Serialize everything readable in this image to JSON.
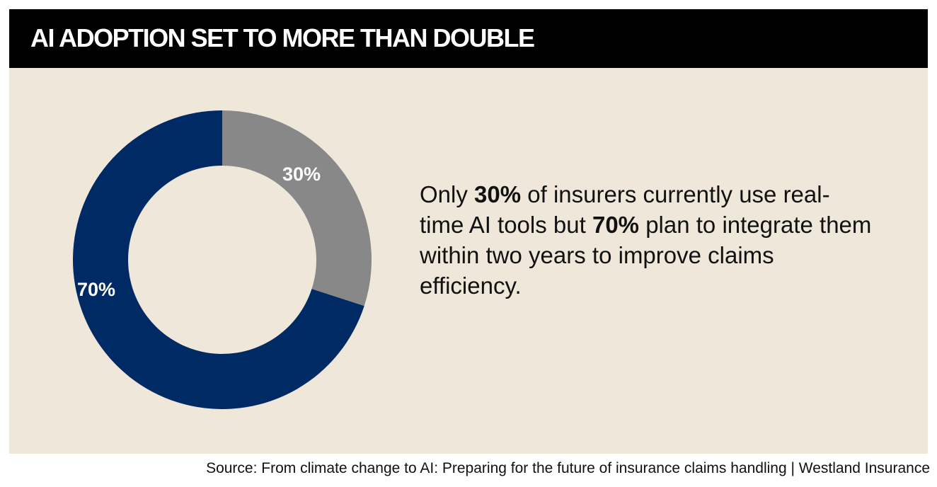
{
  "header": {
    "title": "AI ADOPTION SET TO MORE THAN DOUBLE"
  },
  "chart_data": {
    "type": "pie",
    "variant": "donut",
    "title": "AI ADOPTION SET TO MORE THAN DOUBLE",
    "slices": [
      {
        "value": 30,
        "label": "30%",
        "color": "#888888"
      },
      {
        "value": 70,
        "label": "70%",
        "color": "#002a63"
      }
    ]
  },
  "summary": {
    "part1": "Only ",
    "highlight1": "30%",
    "part2": " of insurers currently use real-time AI tools but ",
    "highlight2": "70%",
    "part3": " plan to integrate them within two years to improve claims efficiency."
  },
  "source": {
    "text": "Source: From climate change to AI: Preparing for the future of insurance claims handling | Westland Insurance"
  },
  "colors": {
    "header_bg": "#000000",
    "panel_bg": "#efe7da",
    "gray_slice": "#888888",
    "navy_slice": "#002a63"
  }
}
